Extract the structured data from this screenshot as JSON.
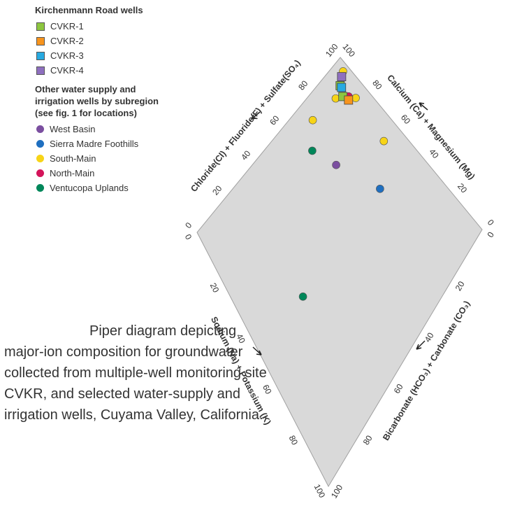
{
  "chart_data": {
    "type": "piper",
    "legend_sections": [
      {
        "title": "Kirchenmann Road wells",
        "series_range": [
          0,
          4
        ]
      },
      {
        "title": "Other water supply and irrigation wells by subregion (see fig. 1 for locations)",
        "series_range": [
          4,
          9
        ]
      }
    ],
    "axes": [
      {
        "label": "Chloride(Cl) + Fluoride(F) + Sulfate(SO₄)",
        "ticks": [
          0,
          20,
          40,
          60,
          80,
          100
        ]
      },
      {
        "label": "Calcium (Ca) + Magnesium (Mg)",
        "ticks": [
          0,
          20,
          40,
          60,
          80,
          100
        ]
      },
      {
        "label": "Sodium (Na) + Potassium (K)",
        "ticks": [
          0,
          20,
          40,
          60,
          80,
          100
        ]
      },
      {
        "label": "Bicarbonate (HCO₃) + Carbonate (CO₃)",
        "ticks": [
          0,
          20,
          40,
          60,
          80,
          100
        ]
      }
    ],
    "series": [
      {
        "name": "CVKR-1",
        "color": "#8dc63f",
        "marker": "square",
        "x": [
          92,
          90
        ],
        "y": [
          92,
          88
        ]
      },
      {
        "name": "CVKR-2",
        "color": "#f7941d",
        "marker": "square",
        "x": [
          91
        ],
        "y": [
          85
        ]
      },
      {
        "name": "CVKR-3",
        "color": "#27aae1",
        "marker": "square",
        "x": [
          92
        ],
        "y": [
          91
        ]
      },
      {
        "name": "CVKR-4",
        "color": "#8e6fbf",
        "marker": "square",
        "x": [
          95
        ],
        "y": [
          94
        ]
      },
      {
        "name": "West Basin",
        "color": "#7b4fa0",
        "marker": "circle",
        "x": [
          70
        ],
        "y": [
          72
        ]
      },
      {
        "name": "Sierra Madre Foothills",
        "color": "#1f6fc0",
        "marker": "circle",
        "x": [
          79
        ],
        "y": [
          50
        ]
      },
      {
        "name": "South-Main",
        "color": "#f7d417",
        "marker": "circle",
        "x": [
          73,
          92,
          87,
          94,
          97
        ],
        "y": [
          92,
          61,
          90,
          83,
          95
        ]
      },
      {
        "name": "North-Main",
        "color": "#d4145a",
        "marker": "circle",
        "x": [
          92
        ],
        "y": [
          86
        ]
      },
      {
        "name": "Ventucopa Uplands",
        "color": "#00875a",
        "marker": "circle",
        "x": [
          65,
          28
        ],
        "y": [
          84,
          51
        ]
      }
    ],
    "caption": "Piper diagram depicting major-ion composition for groundwater collected from multiple-well monitoring site CVKR, and selected water-supply and irrigation wells, Cuyama Valley, California."
  }
}
